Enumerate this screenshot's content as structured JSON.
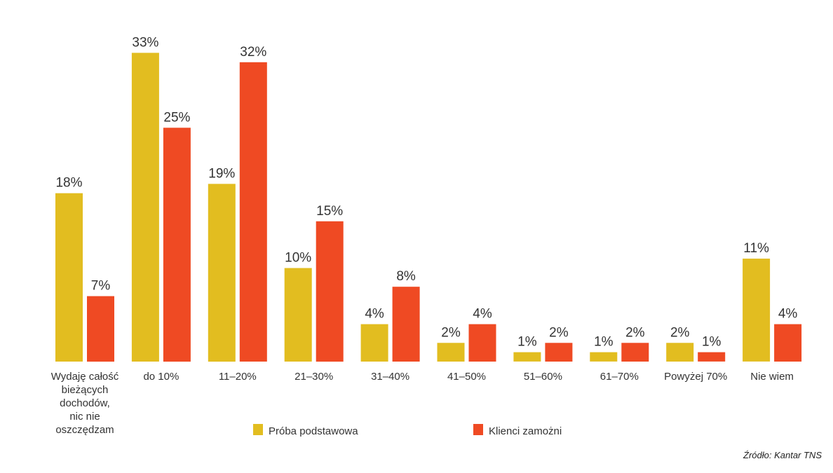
{
  "chart_data": {
    "type": "bar",
    "categories": [
      "Wydaję całość bieżących dochodów, nic nie oszczędzam",
      "do 10%",
      "11–20%",
      "21–30%",
      "31–40%",
      "41–50%",
      "51–60%",
      "61–70%",
      "Powyżej 70%",
      "Nie wiem"
    ],
    "category_lines": [
      [
        "Wydaję całość",
        "bieżących",
        "dochodów,",
        "nic nie",
        "oszczędzam"
      ],
      [
        "do 10%"
      ],
      [
        "11–20%"
      ],
      [
        "21–30%"
      ],
      [
        "31–40%"
      ],
      [
        "41–50%"
      ],
      [
        "51–60%"
      ],
      [
        "61–70%"
      ],
      [
        "Powyżej 70%"
      ],
      [
        "Nie wiem"
      ]
    ],
    "series": [
      {
        "name": "Próba podstawowa",
        "color": "#e2bd20",
        "values": [
          18,
          33,
          19,
          10,
          4,
          2,
          1,
          1,
          2,
          11
        ],
        "labels": [
          "18%",
          "33%",
          "19%",
          "10%",
          "4%",
          "2%",
          "1%",
          "1%",
          "2%",
          "11%"
        ]
      },
      {
        "name": "Klienci zamożni",
        "color": "#ef4a23",
        "values": [
          7,
          25,
          32,
          15,
          8,
          4,
          2,
          2,
          1,
          4
        ],
        "labels": [
          "7%",
          "25%",
          "32%",
          "15%",
          "8%",
          "4%",
          "2%",
          "2%",
          "1%",
          "4%"
        ]
      }
    ],
    "ylim": [
      0,
      35
    ],
    "grid": false,
    "legend_position": "bottom-center",
    "source": "Źródło: Kantar TNS"
  }
}
